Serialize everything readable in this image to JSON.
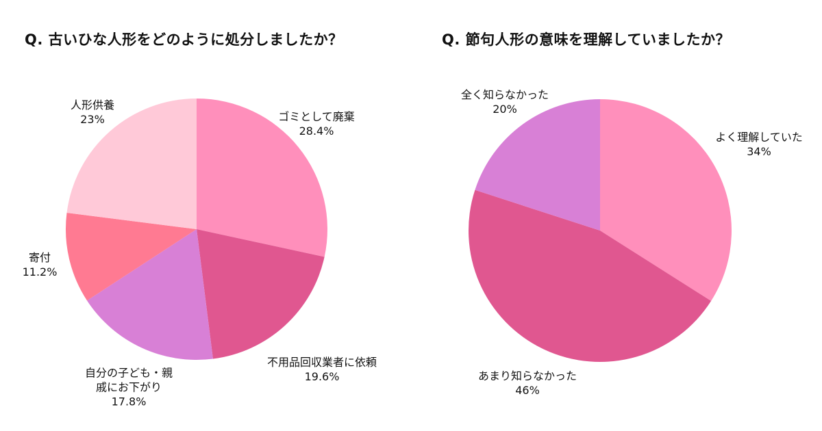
{
  "chart_data": [
    {
      "type": "pie",
      "title": "Q. 古いひな人形をどのように処分しましたか？",
      "slices": [
        {
          "label": "ゴミとして廃棄",
          "value": 28.4,
          "value_text": "28.4%",
          "color": "#ff8fbb"
        },
        {
          "label": "不用品回収業者に依頼",
          "value": 19.6,
          "value_text": "19.6%",
          "color": "#e05790"
        },
        {
          "label": "自分の子ども・親\n戚にお下がり",
          "value": 17.8,
          "value_text": "17.8%",
          "color": "#d880d6"
        },
        {
          "label": "寄付",
          "value": 11.2,
          "value_text": "11.2%",
          "color": "#ff7a92"
        },
        {
          "label": "人形供養",
          "value": 23,
          "value_text": "23%",
          "color": "#ffc9d8"
        }
      ]
    },
    {
      "type": "pie",
      "title": "Q. 節句人形の意味を理解していましたか？",
      "slices": [
        {
          "label": "よく理解していた",
          "value": 34,
          "value_text": "34%",
          "color": "#ff8fbb"
        },
        {
          "label": "あまり知らなかった",
          "value": 46,
          "value_text": "46%",
          "color": "#e05790"
        },
        {
          "label": "全く知らなかった",
          "value": 20,
          "value_text": "20%",
          "color": "#d880d6"
        }
      ]
    }
  ]
}
